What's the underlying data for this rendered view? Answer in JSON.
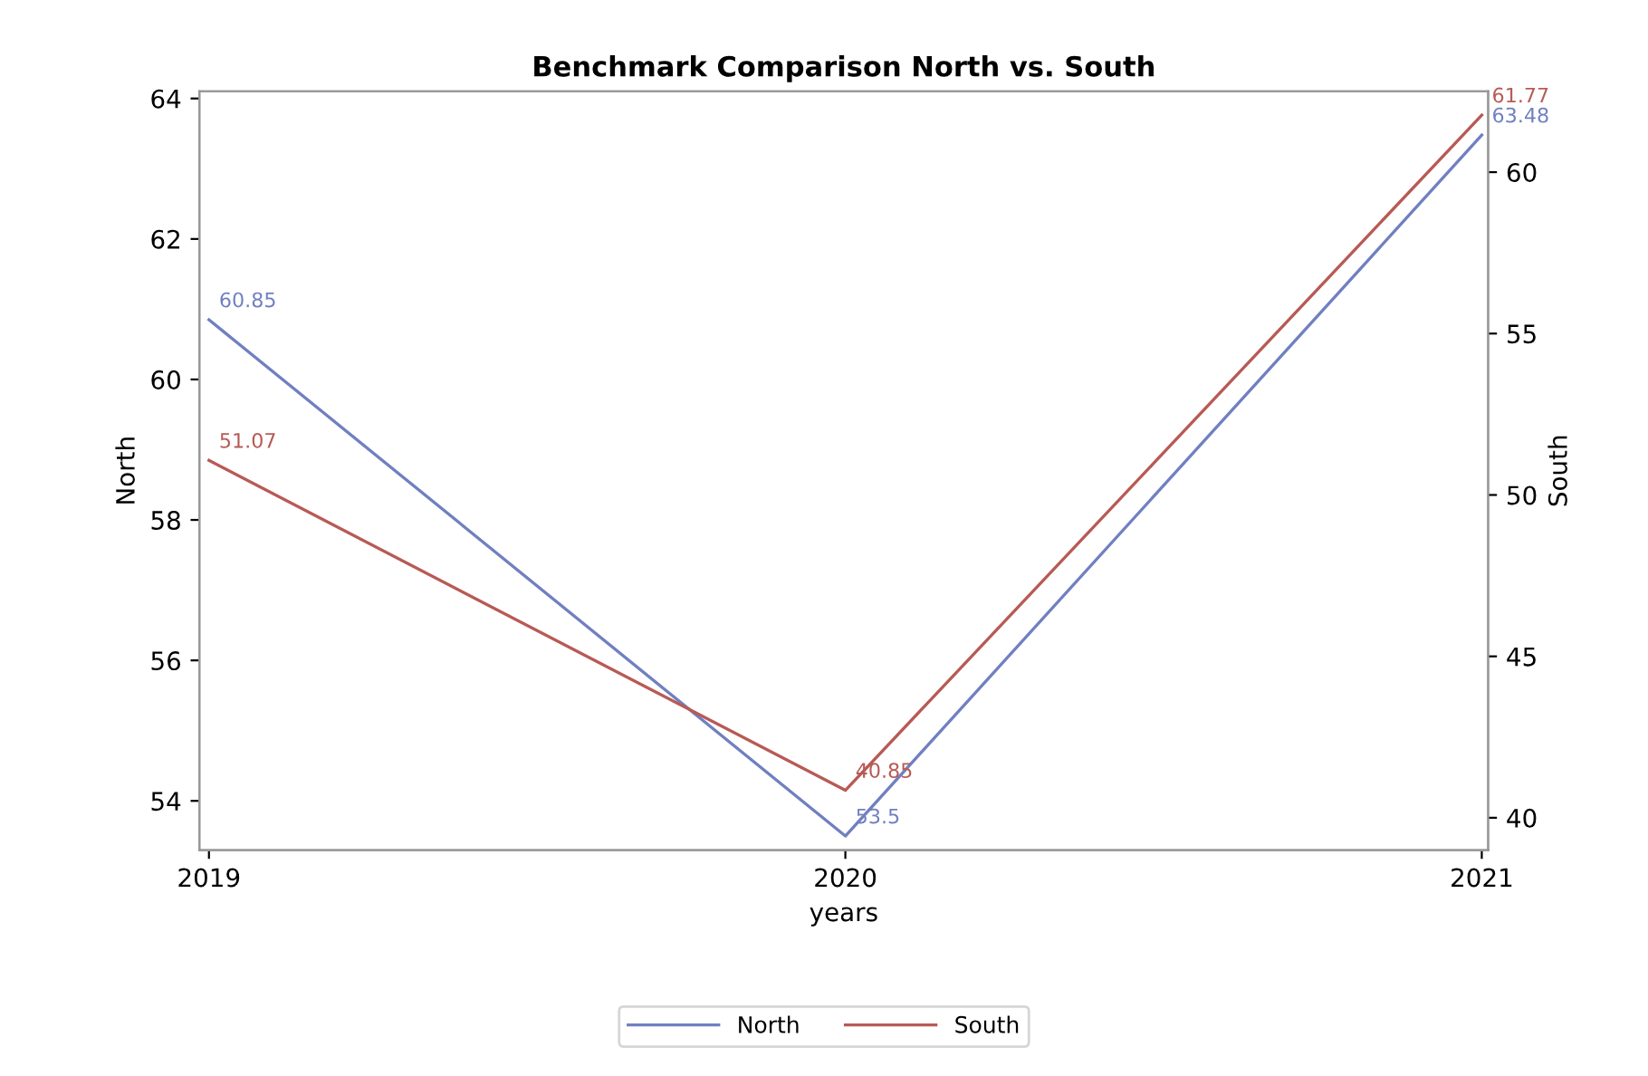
{
  "chart_data": {
    "type": "line",
    "title": "Benchmark Comparison North vs. South",
    "xlabel": "years",
    "ylabel": "North",
    "y2label": "South",
    "x": [
      2019,
      2020,
      2021
    ],
    "xlim": [
      2018.985,
      2021.01
    ],
    "xticks": [
      2019,
      2020,
      2021
    ],
    "ylim": [
      53.3,
      64.1
    ],
    "yticks": [
      54,
      56,
      58,
      60,
      62,
      64
    ],
    "y2lim": [
      39.0,
      62.5
    ],
    "y2ticks": [
      40,
      45,
      50,
      55,
      60
    ],
    "series": [
      {
        "name": "North",
        "color": "#7080c0",
        "values": [
          60.85,
          53.5,
          63.48
        ]
      },
      {
        "name": "South",
        "color": "#b85a55",
        "values": [
          51.07,
          40.85,
          61.77
        ],
        "axis": "y2"
      }
    ],
    "data_labels": true,
    "legend": "bottom",
    "grid": false,
    "marker": "none",
    "line_style": "solid"
  }
}
